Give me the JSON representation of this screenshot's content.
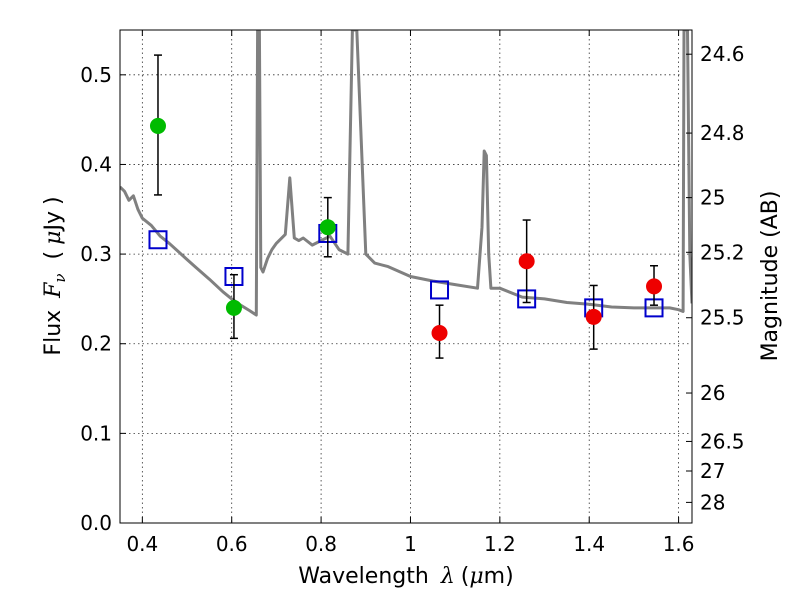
{
  "chart_data": {
    "type": "scatter",
    "title": "",
    "xlabel_text": "Wavelength",
    "xlabel_sym": "λ",
    "xlabel_unit": "(",
    "xlabel_mu": "μ",
    "xlabel_tail": "m)",
    "ylabel_text": "Flux",
    "ylabel_sym": "F",
    "ylabel_sub": "ν",
    "ylabel_open": "(",
    "ylabel_mu": "μ",
    "ylabel_unit": "Jy",
    "ylabel_close": ")",
    "y2label": "Magnitude (AB)",
    "xlim": [
      0.35,
      1.63
    ],
    "ylim": [
      0.0,
      0.55
    ],
    "grid": true,
    "x_ticks": [
      {
        "value": 0.4,
        "label": "0.4"
      },
      {
        "value": 0.6,
        "label": "0.6"
      },
      {
        "value": 0.8,
        "label": "0.8"
      },
      {
        "value": 1.0,
        "label": "1"
      },
      {
        "value": 1.2,
        "label": "1.2"
      },
      {
        "value": 1.4,
        "label": "1.4"
      },
      {
        "value": 1.6,
        "label": "1.6"
      }
    ],
    "y_ticks": [
      {
        "value": 0.0,
        "label": "0.0"
      },
      {
        "value": 0.1,
        "label": "0.1"
      },
      {
        "value": 0.2,
        "label": "0.2"
      },
      {
        "value": 0.3,
        "label": "0.3"
      },
      {
        "value": 0.4,
        "label": "0.4"
      },
      {
        "value": 0.5,
        "label": "0.5"
      }
    ],
    "y2_ticks": [
      {
        "flux": 0.523,
        "label": "24.6"
      },
      {
        "flux": 0.435,
        "label": "24.8"
      },
      {
        "flux": 0.363,
        "label": "25"
      },
      {
        "flux": 0.302,
        "label": "25.2"
      },
      {
        "flux": 0.229,
        "label": "25.5"
      },
      {
        "flux": 0.145,
        "label": "26"
      },
      {
        "flux": 0.091,
        "label": "26.5"
      },
      {
        "flux": 0.058,
        "label": "27"
      },
      {
        "flux": 0.023,
        "label": "28"
      }
    ],
    "series": [
      {
        "kind": "sed_model_line",
        "color": "#808080",
        "x": [
          0.35,
          0.36,
          0.37,
          0.38,
          0.39,
          0.4,
          0.42,
          0.44,
          0.46,
          0.48,
          0.5,
          0.52,
          0.55,
          0.58,
          0.6,
          0.62,
          0.64,
          0.655,
          0.658,
          0.66,
          0.662,
          0.665,
          0.67,
          0.68,
          0.69,
          0.7,
          0.72,
          0.73,
          0.74,
          0.75,
          0.76,
          0.78,
          0.8,
          0.82,
          0.84,
          0.86,
          0.87,
          0.88,
          0.9,
          0.92,
          0.95,
          1.0,
          1.05,
          1.1,
          1.15,
          1.16,
          1.165,
          1.17,
          1.175,
          1.18,
          1.2,
          1.25,
          1.3,
          1.35,
          1.4,
          1.45,
          1.5,
          1.55,
          1.58,
          1.6,
          1.61,
          1.612,
          1.615,
          1.62,
          1.625,
          1.63
        ],
        "y": [
          0.375,
          0.37,
          0.36,
          0.365,
          0.35,
          0.34,
          0.332,
          0.32,
          0.312,
          0.303,
          0.294,
          0.285,
          0.272,
          0.258,
          0.25,
          0.243,
          0.237,
          0.232,
          0.55,
          0.55,
          0.55,
          0.285,
          0.28,
          0.295,
          0.305,
          0.312,
          0.322,
          0.385,
          0.318,
          0.315,
          0.318,
          0.31,
          0.315,
          0.32,
          0.305,
          0.3,
          0.55,
          0.55,
          0.3,
          0.29,
          0.286,
          0.275,
          0.27,
          0.266,
          0.262,
          0.33,
          0.415,
          0.41,
          0.3,
          0.262,
          0.262,
          0.252,
          0.25,
          0.246,
          0.244,
          0.241,
          0.24,
          0.24,
          0.24,
          0.238,
          0.236,
          0.55,
          0.55,
          0.55,
          0.3,
          0.245
        ]
      },
      {
        "kind": "model_photometry",
        "marker": "open_square",
        "color": "#0000cc",
        "x": [
          0.435,
          0.605,
          0.815,
          1.065,
          1.26,
          1.41,
          1.545
        ],
        "y": [
          0.316,
          0.275,
          0.323,
          0.26,
          0.25,
          0.24,
          0.24
        ]
      },
      {
        "kind": "optical_photometry",
        "marker": "filled_circle",
        "color": "#00bb00",
        "x": [
          0.435,
          0.605,
          0.815
        ],
        "y": [
          0.443,
          0.24,
          0.33
        ],
        "yerr_low": [
          0.366,
          0.206,
          0.297
        ],
        "yerr_high": [
          0.522,
          0.277,
          0.363
        ]
      },
      {
        "kind": "nir_photometry",
        "marker": "filled_circle",
        "color": "#ee0000",
        "x": [
          1.065,
          1.26,
          1.41,
          1.545
        ],
        "y": [
          0.212,
          0.292,
          0.23,
          0.264
        ],
        "yerr_low": [
          0.184,
          0.246,
          0.194,
          0.243
        ],
        "yerr_high": [
          0.243,
          0.338,
          0.265,
          0.287
        ]
      }
    ]
  }
}
